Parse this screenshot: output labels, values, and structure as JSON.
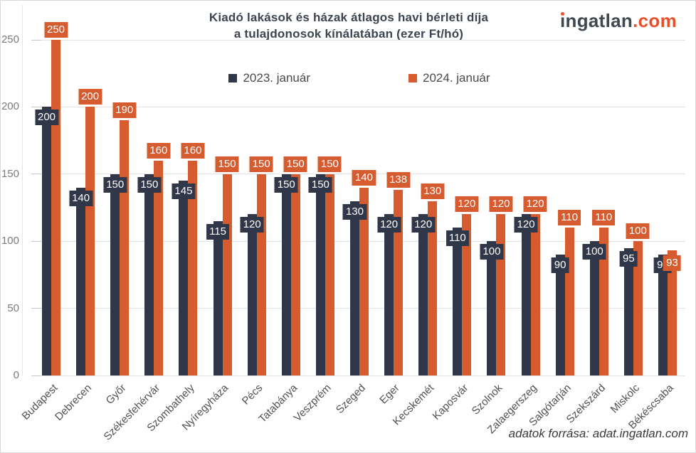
{
  "header": {
    "title_line1": "Kiadó lakások és házak átlagos havi bérleti díja",
    "title_line2": "a tulajdonosok kínálatában (ezer Ft/hó)"
  },
  "logo": {
    "prefix": "ngatlan",
    "suffix": ".com",
    "base_color": "#3f4751",
    "accent_color": "#e8502c"
  },
  "legend": {
    "items": [
      {
        "label": "2023. január",
        "color": "#303749"
      },
      {
        "label": "2024. január",
        "color": "#d65c30"
      }
    ],
    "position": "top-center"
  },
  "chart_data": {
    "type": "bar",
    "title": "Kiadó lakások és házak átlagos havi bérleti díja a tulajdonosok kínálatában (ezer Ft/hó)",
    "categories": [
      "Budapest",
      "Debrecen",
      "Győr",
      "Székesfehérvár",
      "Szombathely",
      "Nyíregyháza",
      "Pécs",
      "Tatabánya",
      "Veszprém",
      "Szeged",
      "Eger",
      "Kecskemét",
      "Kaposvár",
      "Szolnok",
      "Zalaegerszeg",
      "Salgótarján",
      "Szekszárd",
      "Miskolc",
      "Békéscsaba"
    ],
    "series": [
      {
        "name": "2023. január",
        "color": "#303749",
        "values": [
          200,
          140,
          150,
          150,
          145,
          115,
          120,
          150,
          150,
          130,
          120,
          120,
          110,
          100,
          120,
          90,
          100,
          95,
          90
        ],
        "label_placement": "inside"
      },
      {
        "name": "2024. január",
        "color": "#d65c30",
        "values": [
          250,
          200,
          190,
          160,
          160,
          150,
          150,
          150,
          150,
          140,
          138,
          130,
          120,
          120,
          120,
          110,
          110,
          100,
          93
        ],
        "label_placement": "above",
        "label_inside_indices": [
          18
        ]
      }
    ],
    "ylim": [
      0,
      250
    ],
    "yticks": [
      0,
      50,
      100,
      150,
      200,
      250
    ],
    "grid": true,
    "data_labels": true,
    "xlabel": "",
    "ylabel": ""
  },
  "footer": {
    "source": "adatok forrása: adat.ingatlan.com"
  }
}
